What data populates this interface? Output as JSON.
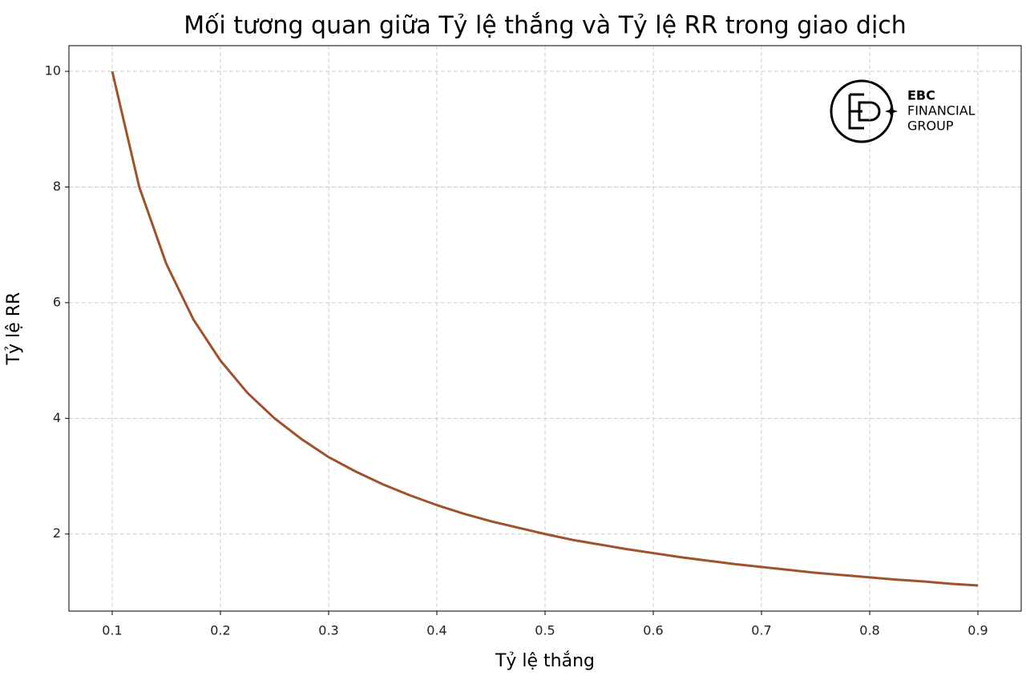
{
  "chart_data": {
    "type": "line",
    "title": "Mối tương quan giữa Tỷ lệ thắng và Tỷ lệ RR trong giao dịch",
    "xlabel": "Tỷ lệ thắng",
    "ylabel": "Tỷ lệ RR",
    "annotations": [
      "EBC",
      "FINANCIAL",
      "GROUP"
    ],
    "x": [
      0.1,
      0.125,
      0.15,
      0.175,
      0.2,
      0.225,
      0.25,
      0.275,
      0.3,
      0.325,
      0.35,
      0.375,
      0.4,
      0.425,
      0.45,
      0.475,
      0.5,
      0.525,
      0.55,
      0.575,
      0.6,
      0.625,
      0.65,
      0.675,
      0.7,
      0.725,
      0.75,
      0.775,
      0.8,
      0.825,
      0.85,
      0.875,
      0.9
    ],
    "series": [
      {
        "color": "#a0522d",
        "values": [
          10,
          8,
          6.67,
          5.71,
          5,
          4.44,
          4,
          3.64,
          3.33,
          3.08,
          2.86,
          2.67,
          2.5,
          2.35,
          2.22,
          2.11,
          2,
          1.9,
          1.82,
          1.74,
          1.67,
          1.6,
          1.54,
          1.48,
          1.43,
          1.38,
          1.33,
          1.29,
          1.25,
          1.21,
          1.18,
          1.14,
          1.11
        ]
      }
    ],
    "xlim": [
      0.06,
      0.94
    ],
    "ylim": [
      0.667,
      10.444
    ],
    "xticks": [
      0.1,
      0.2,
      0.3,
      0.4,
      0.5,
      0.6,
      0.7,
      0.8,
      0.9
    ],
    "yticks": [
      2,
      4,
      6,
      8,
      10
    ],
    "grid": true
  }
}
